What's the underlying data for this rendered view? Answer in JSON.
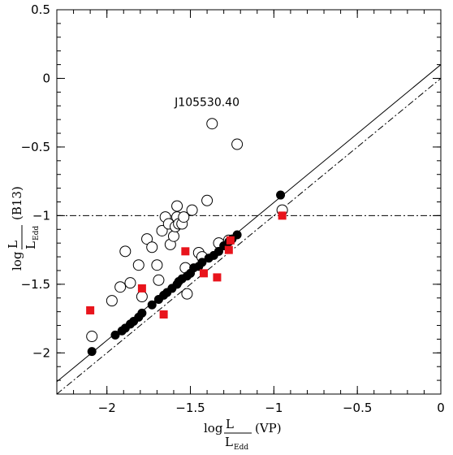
{
  "chart_data": {
    "type": "scatter",
    "xlim": [
      -2.3,
      0
    ],
    "ylim": [
      -2.3,
      0.5
    ],
    "xticks": [
      -2,
      -1.5,
      -1,
      -0.5,
      0
    ],
    "yticks": [
      -2,
      -1.5,
      -1,
      -0.5,
      0,
      0.5
    ],
    "xtick_labels": [
      "−2",
      "−1.5",
      "−1",
      "−0.5",
      "0"
    ],
    "ytick_labels": [
      "−2",
      "−1.5",
      "−1",
      "−0.5",
      "0",
      "0.5"
    ],
    "xlabel": {
      "prefix": "log",
      "frac_num": "L",
      "frac_den": "L",
      "frac_den_sub": "Edd",
      "suffix": "(VP)"
    },
    "ylabel": {
      "prefix": "log",
      "frac_num": "L",
      "frac_den": "L",
      "frac_den_sub": "Edd",
      "suffix": "(B13)"
    },
    "annotations": [
      {
        "text": "J105530.40",
        "x": -1.4,
        "y": -0.2
      }
    ],
    "lines": [
      {
        "style": "solid",
        "x1": -2.3,
        "y1": -2.21,
        "x2": 0,
        "y2": 0.1
      },
      {
        "style": "dashdot",
        "x1": -2.3,
        "y1": -2.3,
        "x2": 0,
        "y2": 0
      },
      {
        "style": "dashdot",
        "x1": -2.3,
        "y1": -1,
        "x2": 0,
        "y2": -1
      }
    ],
    "series": [
      {
        "marker": "open-circle",
        "points": [
          [
            -2.09,
            -1.88
          ],
          [
            -1.97,
            -1.62
          ],
          [
            -1.92,
            -1.52
          ],
          [
            -1.89,
            -1.26
          ],
          [
            -1.86,
            -1.49
          ],
          [
            -1.81,
            -1.36
          ],
          [
            -1.79,
            -1.59
          ],
          [
            -1.76,
            -1.17
          ],
          [
            -1.73,
            -1.23
          ],
          [
            -1.7,
            -1.36
          ],
          [
            -1.69,
            -1.47
          ],
          [
            -1.67,
            -1.11
          ],
          [
            -1.65,
            -1.01
          ],
          [
            -1.63,
            -1.06
          ],
          [
            -1.62,
            -1.21
          ],
          [
            -1.6,
            -1.15
          ],
          [
            -1.59,
            -1.08
          ],
          [
            -1.58,
            -0.93
          ],
          [
            -1.58,
            -1.01
          ],
          [
            -1.57,
            -1.06
          ],
          [
            -1.55,
            -1.06
          ],
          [
            -1.54,
            -1.01
          ],
          [
            -1.53,
            -1.38
          ],
          [
            -1.52,
            -1.57
          ],
          [
            -1.49,
            -0.96
          ],
          [
            -1.45,
            -1.27
          ],
          [
            -1.43,
            -1.3
          ],
          [
            -1.4,
            -0.89
          ],
          [
            -1.37,
            -0.33
          ],
          [
            -1.33,
            -1.2
          ],
          [
            -1.27,
            -1.18
          ],
          [
            -1.22,
            -0.48
          ],
          [
            -0.95,
            -0.96
          ]
        ]
      },
      {
        "marker": "filled-circle",
        "points": [
          [
            -2.09,
            -1.99
          ],
          [
            -1.95,
            -1.87
          ],
          [
            -1.91,
            -1.84
          ],
          [
            -1.89,
            -1.82
          ],
          [
            -1.86,
            -1.79
          ],
          [
            -1.84,
            -1.77
          ],
          [
            -1.81,
            -1.74
          ],
          [
            -1.79,
            -1.71
          ],
          [
            -1.73,
            -1.65
          ],
          [
            -1.69,
            -1.61
          ],
          [
            -1.66,
            -1.58
          ],
          [
            -1.64,
            -1.56
          ],
          [
            -1.61,
            -1.53
          ],
          [
            -1.58,
            -1.5
          ],
          [
            -1.57,
            -1.48
          ],
          [
            -1.55,
            -1.46
          ],
          [
            -1.52,
            -1.44
          ],
          [
            -1.5,
            -1.42
          ],
          [
            -1.48,
            -1.38
          ],
          [
            -1.45,
            -1.37
          ],
          [
            -1.43,
            -1.34
          ],
          [
            -1.39,
            -1.31
          ],
          [
            -1.36,
            -1.29
          ],
          [
            -1.33,
            -1.26
          ],
          [
            -1.3,
            -1.22
          ],
          [
            -1.27,
            -1.19
          ],
          [
            -1.25,
            -1.17
          ],
          [
            -1.22,
            -1.14
          ],
          [
            -0.96,
            -0.85
          ]
        ]
      },
      {
        "marker": "filled-square",
        "color": "#e8141c",
        "points": [
          [
            -2.1,
            -1.69
          ],
          [
            -1.79,
            -1.53
          ],
          [
            -1.66,
            -1.72
          ],
          [
            -1.53,
            -1.26
          ],
          [
            -1.42,
            -1.42
          ],
          [
            -1.34,
            -1.45
          ],
          [
            -1.27,
            -1.25
          ],
          [
            -1.26,
            -1.18
          ],
          [
            -0.95,
            -1.0
          ]
        ]
      }
    ]
  }
}
